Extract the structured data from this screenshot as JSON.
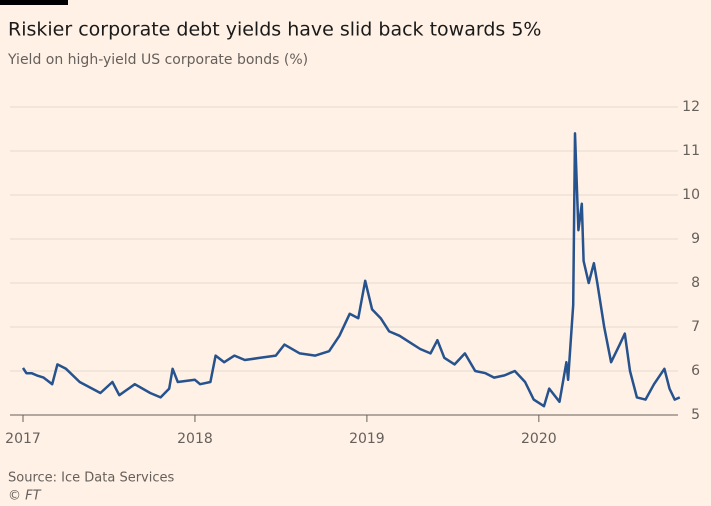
{
  "chart_data": {
    "type": "line",
    "title": "Riskier corporate debt yields have slid back towards 5%",
    "subtitle": "Yield on high-yield US corporate bonds (%)",
    "source": "Source: Ice Data Services",
    "credit": "© FT",
    "x": [
      2017.0,
      2017.02,
      2017.05,
      2017.08,
      2017.12,
      2017.17,
      2017.2,
      2017.25,
      2017.33,
      2017.45,
      2017.52,
      2017.56,
      2017.65,
      2017.74,
      2017.8,
      2017.85,
      2017.87,
      2017.9,
      2018.0,
      2018.03,
      2018.09,
      2018.12,
      2018.17,
      2018.23,
      2018.29,
      2018.38,
      2018.47,
      2018.52,
      2018.61,
      2018.7,
      2018.78,
      2018.84,
      2018.9,
      2018.95,
      2018.99,
      2019.03,
      2019.08,
      2019.13,
      2019.19,
      2019.25,
      2019.31,
      2019.37,
      2019.41,
      2019.45,
      2019.51,
      2019.57,
      2019.63,
      2019.69,
      2019.74,
      2019.8,
      2019.86,
      2019.92,
      2019.97,
      2020.03,
      2020.06,
      2020.12,
      2020.16,
      2020.17,
      2020.2,
      2020.21,
      2020.23,
      2020.25,
      2020.26,
      2020.29,
      2020.32,
      2020.34,
      2020.38,
      2020.42,
      2020.47,
      2020.5,
      2020.53,
      2020.57,
      2020.62,
      2020.67,
      2020.73,
      2020.76,
      2020.79,
      2020.82
    ],
    "series": [
      {
        "name": "Yield",
        "color": "#26528e",
        "values": [
          6.07,
          5.95,
          5.95,
          5.9,
          5.85,
          5.7,
          6.15,
          6.05,
          5.75,
          5.5,
          5.75,
          5.45,
          5.7,
          5.5,
          5.4,
          5.6,
          6.05,
          5.75,
          5.8,
          5.7,
          5.75,
          6.35,
          6.2,
          6.35,
          6.25,
          6.3,
          6.35,
          6.6,
          6.4,
          6.35,
          6.45,
          6.8,
          7.3,
          7.2,
          8.05,
          7.4,
          7.2,
          6.9,
          6.8,
          6.65,
          6.5,
          6.4,
          6.7,
          6.3,
          6.15,
          6.4,
          6.0,
          5.95,
          5.85,
          5.9,
          6.0,
          5.75,
          5.35,
          5.2,
          5.6,
          5.3,
          6.2,
          5.8,
          7.5,
          11.4,
          9.2,
          9.8,
          8.5,
          8.0,
          8.45,
          8.0,
          7.0,
          6.2,
          6.6,
          6.85,
          6.0,
          5.4,
          5.35,
          5.7,
          6.05,
          5.6,
          5.35,
          5.4
        ]
      }
    ],
    "xlim": [
      2017,
      2020.85
    ],
    "xticks": [
      2017,
      2018,
      2019,
      2020
    ],
    "ylim": [
      5,
      12
    ],
    "yticks": [
      5,
      6,
      7,
      8,
      9,
      10,
      11,
      12
    ],
    "grid": true
  }
}
